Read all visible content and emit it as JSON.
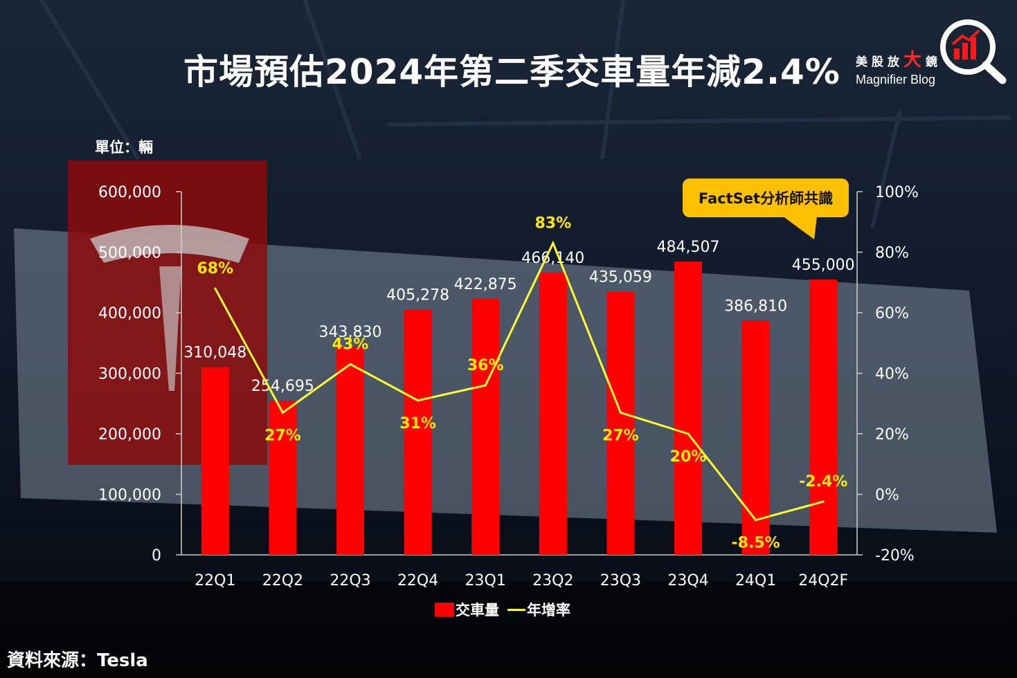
{
  "header": {
    "title": "市場預估2024年第二季交車量年減2.4%",
    "brand_cn_1": "美股放",
    "brand_cn_big": "大",
    "brand_cn_2": "鏡",
    "brand_en": "Magnifier Blog",
    "logo_icon": "magnifier-chart-icon"
  },
  "callout": {
    "text": "FactSet分析師共識"
  },
  "footer": {
    "source": "資料來源：Tesla"
  },
  "colors": {
    "bar": "#ff0000",
    "line": "#ffff33",
    "callout": "#ffc000",
    "text": "#ffffff"
  },
  "chart_data": {
    "type": "bar",
    "title": "",
    "unit_label": "單位：輛",
    "categories": [
      "22Q1",
      "22Q2",
      "22Q3",
      "22Q4",
      "23Q1",
      "23Q2",
      "23Q3",
      "23Q4",
      "24Q1",
      "24Q2F"
    ],
    "series": [
      {
        "name": "交車量",
        "type": "bar",
        "axis": "left",
        "values": [
          310048,
          254695,
          343830,
          405278,
          422875,
          466140,
          435059,
          484507,
          386810,
          455000
        ],
        "labels": [
          "310,048",
          "254,695",
          "343,830",
          "405,278",
          "422,875",
          "466,140",
          "435,059",
          "484,507",
          "386,810",
          "455,000"
        ]
      },
      {
        "name": "年增率",
        "type": "line",
        "axis": "right",
        "values": [
          68,
          27,
          43,
          31,
          36,
          83,
          27,
          20,
          -8.5,
          -2.4
        ],
        "labels": [
          "68%",
          "27%",
          "43%",
          "31%",
          "36%",
          "83%",
          "27%",
          "20%",
          "-8.5%",
          "-2.4%"
        ]
      }
    ],
    "y_left": {
      "ylim": [
        0,
        600000
      ],
      "ticks": [
        "0",
        "100,000",
        "200,000",
        "300,000",
        "400,000",
        "500,000",
        "600,000"
      ]
    },
    "y_right": {
      "ylim": [
        -20,
        100
      ],
      "ticks": [
        "-20%",
        "0%",
        "20%",
        "40%",
        "60%",
        "80%",
        "100%"
      ]
    },
    "grid": false,
    "legend": "bottom"
  }
}
